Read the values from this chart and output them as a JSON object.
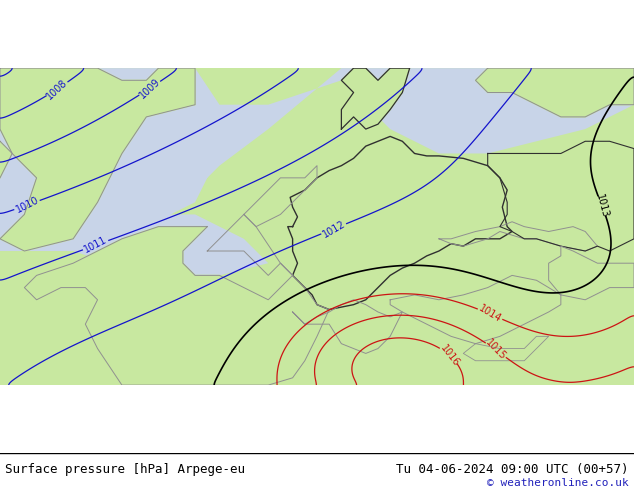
{
  "title_left": "Surface pressure [hPa] Arpege-eu",
  "title_right": "Tu 04-06-2024 09:00 UTC (00+57)",
  "credit": "© weatheronline.co.uk",
  "background_color": "#ffffff",
  "fig_width": 6.34,
  "fig_height": 4.9,
  "dpi": 100,
  "land_color": "#c8e8a0",
  "sea_color": "#c8d4e8",
  "border_color_dark": "#303030",
  "border_color_gray": "#909090",
  "blue_color": "#1414cc",
  "black_color": "#000000",
  "red_color": "#cc1414",
  "label_fontsize": 7,
  "footer_fontsize": 9,
  "credit_fontsize": 8,
  "lon_min": -6.0,
  "lon_max": 20.0,
  "lat_min": 44.5,
  "lat_max": 57.5
}
